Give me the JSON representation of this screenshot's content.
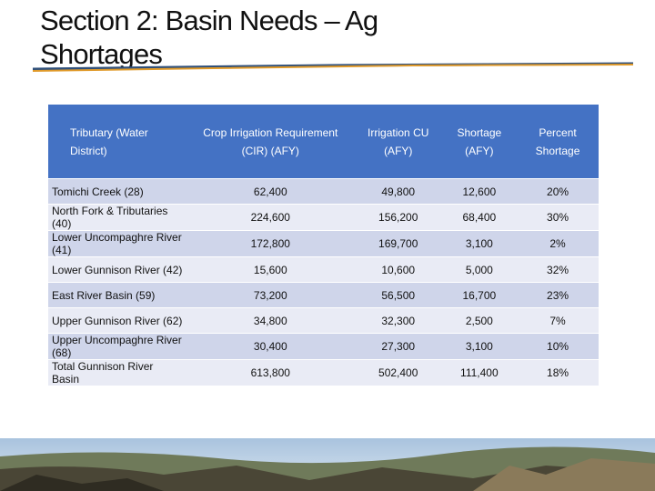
{
  "header": {
    "title": "Section 2: Basin Needs – Ag Shortages"
  },
  "table": {
    "columns": [
      "Tributary (Water District)",
      "Crop Irrigation Requirement (CIR) (AFY)",
      "Irrigation CU (AFY)",
      "Shortage (AFY)",
      "Percent Shortage"
    ],
    "rows": [
      [
        "Tomichi Creek (28)",
        "62,400",
        "49,800",
        "12,600",
        "20%"
      ],
      [
        "North Fork & Tributaries (40)",
        "224,600",
        "156,200",
        "68,400",
        "30%"
      ],
      [
        "Lower Uncompaghre River (41)",
        "172,800",
        "169,700",
        "3,100",
        "2%"
      ],
      [
        "Lower Gunnison River (42)",
        "15,600",
        "10,600",
        "5,000",
        "32%"
      ],
      [
        "East River Basin (59)",
        "73,200",
        "56,500",
        "16,700",
        "23%"
      ],
      [
        "Upper Gunnison River (62)",
        "34,800",
        "32,300",
        "2,500",
        "7%"
      ],
      [
        "Upper Uncompaghre River (68)",
        "30,400",
        "27,300",
        "3,100",
        "10%"
      ],
      [
        "Total Gunnison River Basin",
        "613,800",
        "502,400",
        "111,400",
        "18%"
      ]
    ]
  }
}
